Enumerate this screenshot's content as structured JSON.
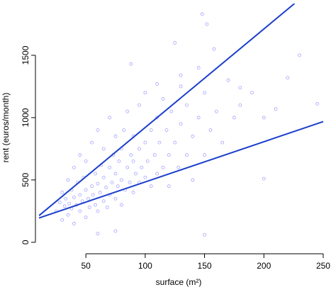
{
  "chart_data": {
    "type": "scatter",
    "xlabel": "surface (m²)",
    "ylabel": "rent (euros/month)",
    "xlim": [
      10.5,
      253
    ],
    "ylim": [
      -75,
      1915
    ],
    "xticks": [
      50,
      100,
      150,
      200,
      250
    ],
    "yticks": [
      0,
      500,
      1000,
      1500
    ],
    "grid": false,
    "points": {
      "color": "#3333ff",
      "x": [
        25,
        28,
        30,
        30,
        32,
        33,
        35,
        35,
        36,
        38,
        38,
        40,
        40,
        40,
        42,
        43,
        45,
        45,
        45,
        47,
        48,
        50,
        50,
        50,
        52,
        53,
        55,
        55,
        56,
        58,
        58,
        60,
        60,
        60,
        62,
        63,
        65,
        65,
        65,
        67,
        68,
        70,
        70,
        70,
        72,
        73,
        75,
        75,
        75,
        77,
        78,
        80,
        80,
        80,
        82,
        83,
        85,
        85,
        87,
        88,
        90,
        90,
        90,
        92,
        95,
        95,
        95,
        97,
        100,
        100,
        100,
        102,
        105,
        105,
        108,
        110,
        110,
        112,
        115,
        115,
        118,
        120,
        120,
        122,
        125,
        128,
        130,
        130,
        135,
        135,
        140,
        140,
        145,
        145,
        150,
        150,
        155,
        158,
        160,
        165,
        170,
        175,
        180,
        190,
        200,
        200,
        210,
        220,
        230,
        245,
        148,
        152,
        125,
        88,
        60,
        75,
        150,
        110,
        130,
        180
      ],
      "y": [
        250,
        320,
        180,
        400,
        290,
        350,
        220,
        500,
        310,
        270,
        420,
        150,
        360,
        600,
        300,
        480,
        250,
        380,
        700,
        330,
        520,
        200,
        420,
        650,
        350,
        280,
        450,
        800,
        380,
        300,
        550,
        250,
        470,
        900,
        400,
        620,
        330,
        520,
        750,
        440,
        280,
        380,
        600,
        1000,
        480,
        700,
        350,
        550,
        850,
        450,
        650,
        300,
        500,
        750,
        900,
        420,
        600,
        1050,
        480,
        700,
        400,
        650,
        850,
        550,
        480,
        750,
        1100,
        600,
        520,
        800,
        1200,
        650,
        450,
        900,
        700,
        550,
        1000,
        800,
        600,
        1150,
        900,
        700,
        450,
        1050,
        800,
        600,
        950,
        1250,
        700,
        1100,
        850,
        500,
        1000,
        1400,
        700,
        1200,
        900,
        1550,
        1050,
        800,
        1300,
        1000,
        1100,
        1200,
        510,
        1000,
        1070,
        1320,
        1500,
        1110,
        1830,
        1750,
        1600,
        1430,
        70,
        90,
        60,
        1270,
        1340,
        1240
      ]
    },
    "lines": [
      {
        "color": "#1c3fcc",
        "x": [
          10.5,
          225.8
        ],
        "y": [
          214,
          1915
        ]
      },
      {
        "color": "#1c3fcc",
        "x": [
          10.5,
          250
        ],
        "y": [
          195,
          968
        ]
      }
    ]
  }
}
